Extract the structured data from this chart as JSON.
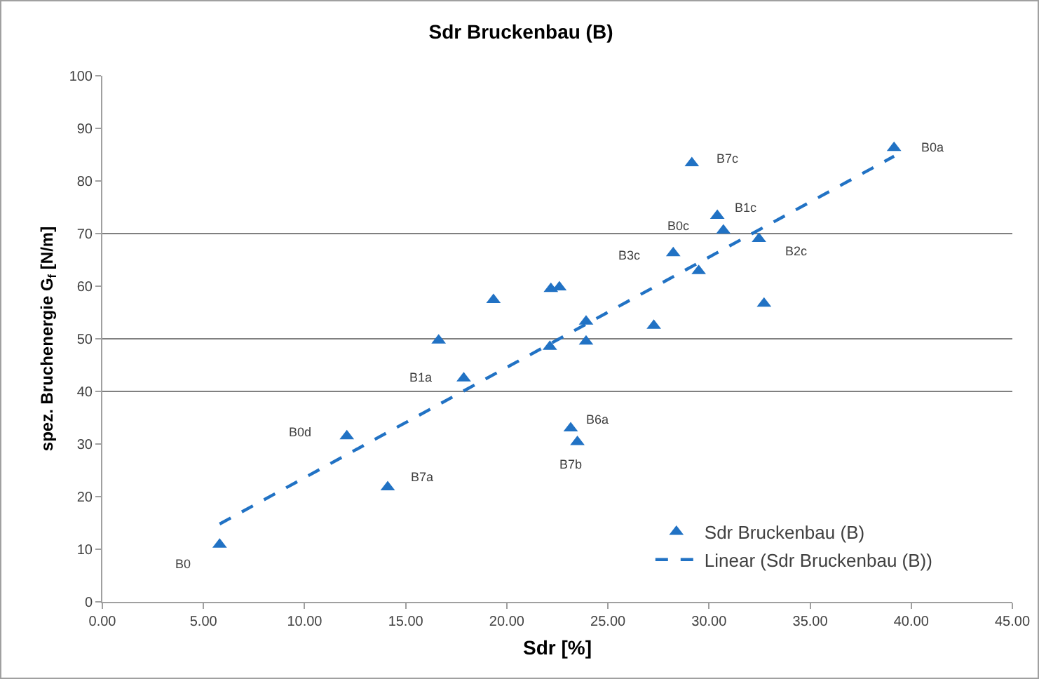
{
  "chart_data": {
    "type": "scatter",
    "title": "Sdr Bruckenbau (B)",
    "xlabel": "Sdr [%]",
    "ylabel": "spez. Bruchenergie G$_{f}$ [N/m]",
    "series": [
      {
        "name": "Sdr Bruckenbau (B)",
        "color": "#2172c4",
        "marker": "triangle",
        "x": [
          5.8,
          12.09,
          14.11,
          16.63,
          17.87,
          19.34,
          22.18,
          22.6,
          22.13,
          23.92,
          23.92,
          27.27,
          28.23,
          29.15,
          29.49,
          30.41,
          30.71,
          32.47,
          32.72,
          39.15,
          23.16,
          23.49
        ],
        "values": [
          10.9,
          31.5,
          21.8,
          49.7,
          42.5,
          57.4,
          59.5,
          59.8,
          48.5,
          53.3,
          49.5,
          52.5,
          66.3,
          83.4,
          62.9,
          73.4,
          70.6,
          69.0,
          56.7,
          86.3,
          33.0,
          30.4
        ]
      },
      {
        "name": "Linear (Sdr Bruckenbau (B))",
        "type": "line",
        "color": "#2172c4",
        "line_style": "dashed",
        "marker": "none",
        "x": [
          5.8,
          39.15
        ],
        "values": [
          14.8,
          84.7
        ]
      }
    ],
    "xlim": [
      0,
      45
    ],
    "xticks": [
      {
        "value": 0,
        "label": "0.00"
      },
      {
        "value": 5,
        "label": "5.00"
      },
      {
        "value": 10,
        "label": "10.00"
      },
      {
        "value": 15,
        "label": "15.00"
      },
      {
        "value": 20,
        "label": "20.00"
      },
      {
        "value": 25,
        "label": "25.00"
      },
      {
        "value": 30,
        "label": "30.00"
      },
      {
        "value": 35,
        "label": "35.00"
      },
      {
        "value": 40,
        "label": "40.00"
      },
      {
        "value": 45,
        "label": "45.00"
      }
    ],
    "ylim": [
      0,
      100
    ],
    "yticks": [
      0,
      10,
      20,
      30,
      40,
      50,
      60,
      70,
      80,
      90,
      100
    ],
    "ref_lines": [
      {
        "axis": "y",
        "value": 40,
        "color": "#808080"
      },
      {
        "axis": "y",
        "value": 50,
        "color": "#808080"
      },
      {
        "axis": "y",
        "value": 70,
        "color": "#808080"
      }
    ],
    "legend": "bottom right",
    "annotations": [
      {
        "text": "B0",
        "x": 5.8,
        "y": 10.9
      },
      {
        "text": "B0d",
        "x": 12.09,
        "y": 31.5
      },
      {
        "text": "B7a",
        "x": 14.11,
        "y": 21.8
      },
      {
        "text": "B1a",
        "x": 17.87,
        "y": 42.5
      },
      {
        "text": "B6a",
        "x": 23.16,
        "y": 33.0
      },
      {
        "text": "B7b",
        "x": 23.49,
        "y": 30.4
      },
      {
        "text": "B3c",
        "x": 28.23,
        "y": 66.3
      },
      {
        "text": "B0c",
        "x": 30.71,
        "y": 70.6
      },
      {
        "text": "B7c",
        "x": 29.15,
        "y": 83.4
      },
      {
        "text": "B1c",
        "x": 30.41,
        "y": 73.4
      },
      {
        "text": "B2c",
        "x": 32.47,
        "y": 69.0
      },
      {
        "text": "B0a",
        "x": 39.15,
        "y": 86.3
      }
    ]
  }
}
